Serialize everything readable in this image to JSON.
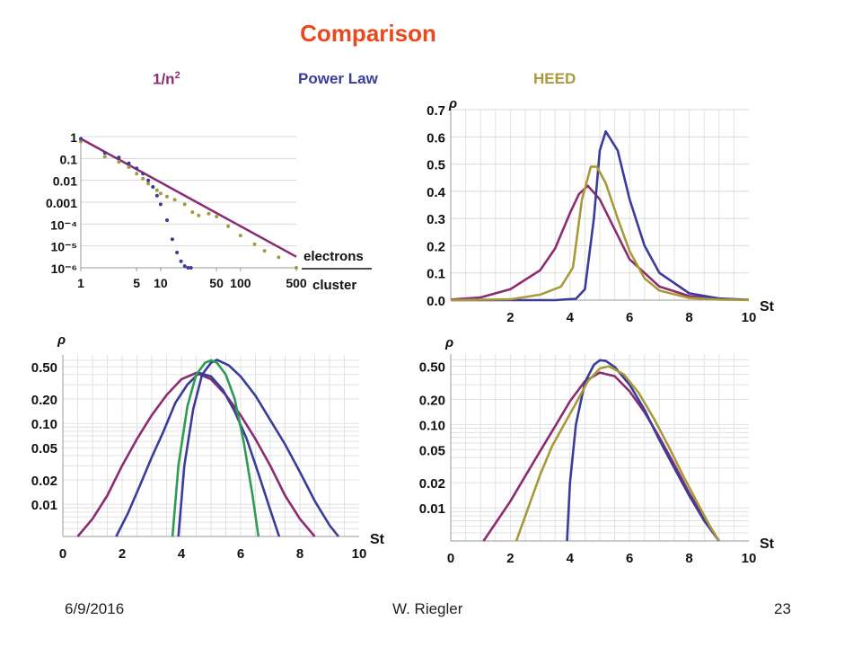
{
  "slide": {
    "title": "Comparison",
    "legend": {
      "n2": {
        "label": "1/n",
        "sup": "2",
        "color": "#8b2c72"
      },
      "power": {
        "label": "Power Law",
        "color": "#3a3c9a"
      },
      "heed": {
        "label": "HEED",
        "color": "#a89a3a"
      }
    },
    "footer": {
      "date": "6/9/2016",
      "author": "W. Riegler",
      "page": "23"
    }
  },
  "chart_data": [
    {
      "id": "cluster-size",
      "type": "scatter",
      "xscale": "log",
      "yscale": "log",
      "xlim": [
        1,
        500
      ],
      "ylim": [
        1e-06,
        1
      ],
      "xticks": [
        "1",
        "5",
        "10",
        "50",
        "100",
        "500"
      ],
      "yticks": [
        "1",
        "0.1",
        "0.01",
        "0.001",
        "10⁻⁴",
        "10⁻⁵",
        "10⁻⁶"
      ],
      "xlabel_top": "electrons",
      "xlabel_bottom": "cluster",
      "series": [
        {
          "color": "#3a3c9a",
          "x": [
            1,
            2,
            3,
            4,
            5,
            6,
            7,
            8,
            9,
            10,
            12,
            14,
            16,
            18,
            20,
            22,
            24
          ],
          "y": [
            0.8,
            0.18,
            0.11,
            0.06,
            0.035,
            0.02,
            0.01,
            0.005,
            0.002,
            0.0008,
            0.00015,
            2e-05,
            5e-06,
            2e-06,
            1.2e-06,
            1e-06,
            1e-06
          ]
        },
        {
          "color": "#8b2c72",
          "x": [
            1,
            500
          ],
          "y": [
            0.8,
            3.2e-06
          ]
        },
        {
          "color": "#a89a3a",
          "x": [
            1,
            2,
            3,
            4,
            5,
            6,
            7,
            8,
            9,
            10,
            12,
            15,
            20,
            25,
            30,
            40,
            50,
            70,
            100,
            150,
            200,
            300,
            500
          ],
          "y": [
            0.6,
            0.12,
            0.07,
            0.04,
            0.02,
            0.012,
            0.007,
            0.005,
            0.0035,
            0.0025,
            0.0018,
            0.0013,
            0.0008,
            0.00035,
            0.00025,
            0.0003,
            0.00022,
            8e-05,
            3e-05,
            1.2e-05,
            6e-06,
            3e-06,
            1e-06
          ]
        }
      ]
    },
    {
      "id": "density-linear",
      "type": "line",
      "xlim": [
        0,
        10
      ],
      "ylim": [
        0,
        0.7
      ],
      "xticks": [
        "2",
        "4",
        "6",
        "8",
        "10"
      ],
      "yticks": [
        "0.0",
        "0.1",
        "0.2",
        "0.3",
        "0.4",
        "0.5",
        "0.6",
        "0.7"
      ],
      "xlabel": "St",
      "ylabel": "ρ",
      "series": [
        {
          "color": "#8b2c72",
          "x": [
            0,
            1,
            2,
            3,
            3.5,
            4,
            4.3,
            4.6,
            5,
            5.5,
            6,
            7,
            8,
            9,
            10
          ],
          "y": [
            0.002,
            0.01,
            0.04,
            0.11,
            0.19,
            0.32,
            0.39,
            0.42,
            0.37,
            0.26,
            0.15,
            0.05,
            0.015,
            0.004,
            0.001
          ]
        },
        {
          "color": "#3a3c9a",
          "x": [
            0,
            3.5,
            4.2,
            4.5,
            4.8,
            5,
            5.2,
            5.6,
            6,
            6.5,
            7,
            8,
            9,
            10
          ],
          "y": [
            0,
            0,
            0.005,
            0.04,
            0.3,
            0.55,
            0.62,
            0.55,
            0.37,
            0.2,
            0.1,
            0.025,
            0.006,
            0.001
          ]
        },
        {
          "color": "#a89a3a",
          "x": [
            0,
            2,
            3,
            3.7,
            4.1,
            4.4,
            4.7,
            4.9,
            5.2,
            5.6,
            6,
            6.5,
            7,
            8,
            9,
            10
          ],
          "y": [
            0,
            0.003,
            0.02,
            0.05,
            0.12,
            0.37,
            0.49,
            0.49,
            0.43,
            0.3,
            0.18,
            0.08,
            0.035,
            0.008,
            0.002,
            0.0005
          ]
        }
      ]
    },
    {
      "id": "density-log-fit",
      "type": "line",
      "yscale": "log",
      "xlim": [
        0,
        10
      ],
      "ylim": [
        0.004,
        0.7
      ],
      "xticks": [
        "0",
        "2",
        "4",
        "6",
        "8",
        "10"
      ],
      "yticks": [
        "0.50",
        "0.20",
        "0.10",
        "0.05",
        "0.02",
        "0.01"
      ],
      "xlabel": "St",
      "ylabel": "ρ",
      "series": [
        {
          "color": "#8b2c72",
          "x": [
            0.5,
            1,
            1.5,
            2,
            2.5,
            3,
            3.5,
            4,
            4.5,
            5,
            5.5,
            6,
            6.5,
            7,
            7.5,
            8,
            8.5
          ],
          "y": [
            0.004,
            0.0066,
            0.0128,
            0.03,
            0.064,
            0.126,
            0.224,
            0.35,
            0.42,
            0.35,
            0.224,
            0.126,
            0.064,
            0.03,
            0.0128,
            0.0066,
            0.004
          ]
        },
        {
          "color": "#3a3c9a",
          "x": [
            1.8,
            2.2,
            2.6,
            3,
            3.4,
            3.8,
            4.2,
            4.6,
            5,
            5.4,
            5.8,
            6.2,
            6.6,
            7,
            7.3
          ],
          "y": [
            0.004,
            0.0078,
            0.017,
            0.038,
            0.08,
            0.18,
            0.3,
            0.42,
            0.38,
            0.26,
            0.14,
            0.065,
            0.024,
            0.0085,
            0.004
          ]
        },
        {
          "color": "#3a3c9a",
          "x": [
            3.9,
            4.1,
            4.4,
            4.7,
            5,
            5.2,
            5.6,
            6,
            6.5,
            7,
            7.5,
            8,
            8.5,
            9,
            9.3
          ],
          "y": [
            0.004,
            0.03,
            0.15,
            0.4,
            0.56,
            0.61,
            0.52,
            0.38,
            0.22,
            0.11,
            0.055,
            0.025,
            0.011,
            0.0055,
            0.004
          ]
        },
        {
          "color": "#2e9a52",
          "x": [
            3.7,
            3.9,
            4.2,
            4.5,
            4.8,
            5,
            5.2,
            5.5,
            5.8,
            6.1,
            6.4,
            6.6
          ],
          "y": [
            0.004,
            0.03,
            0.16,
            0.4,
            0.56,
            0.6,
            0.56,
            0.4,
            0.2,
            0.06,
            0.013,
            0.004
          ]
        }
      ]
    },
    {
      "id": "density-log",
      "type": "line",
      "yscale": "log",
      "xlim": [
        0,
        10
      ],
      "ylim": [
        0.004,
        0.7
      ],
      "xticks": [
        "0",
        "2",
        "4",
        "6",
        "8",
        "10"
      ],
      "yticks": [
        "0.50",
        "0.20",
        "0.10",
        "0.05",
        "0.02",
        "0.01"
      ],
      "xlabel": "St",
      "ylabel": "ρ",
      "series": [
        {
          "color": "#8b2c72",
          "x": [
            1.1,
            1.5,
            2,
            2.5,
            3,
            3.5,
            4,
            4.5,
            5,
            5.5,
            6,
            6.5,
            7,
            7.5,
            8,
            8.5,
            9
          ],
          "y": [
            0.004,
            0.0065,
            0.012,
            0.024,
            0.048,
            0.095,
            0.19,
            0.33,
            0.42,
            0.38,
            0.25,
            0.14,
            0.07,
            0.033,
            0.015,
            0.0075,
            0.004
          ]
        },
        {
          "color": "#3a3c9a",
          "x": [
            3.9,
            4.0,
            4.2,
            4.5,
            4.8,
            5,
            5.2,
            5.5,
            6,
            6.5,
            7,
            7.5,
            8,
            8.5,
            9
          ],
          "y": [
            0.004,
            0.02,
            0.1,
            0.32,
            0.52,
            0.59,
            0.58,
            0.49,
            0.3,
            0.15,
            0.065,
            0.03,
            0.014,
            0.007,
            0.004
          ]
        },
        {
          "color": "#a89a3a",
          "x": [
            2.2,
            2.6,
            3,
            3.4,
            3.8,
            4.2,
            4.6,
            5,
            5.3,
            5.8,
            6.3,
            6.8,
            7.3,
            7.8,
            8.3,
            8.7,
            9
          ],
          "y": [
            0.004,
            0.01,
            0.025,
            0.055,
            0.1,
            0.18,
            0.33,
            0.47,
            0.5,
            0.4,
            0.24,
            0.12,
            0.055,
            0.024,
            0.011,
            0.006,
            0.004
          ]
        }
      ]
    }
  ]
}
